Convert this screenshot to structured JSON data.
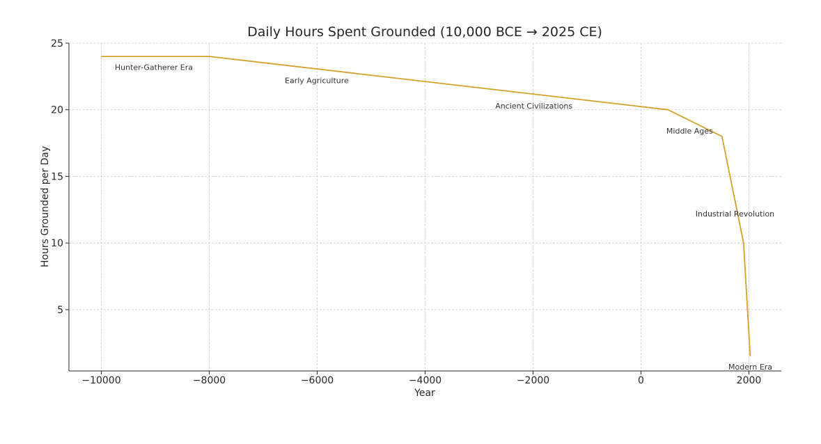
{
  "chart_data": {
    "type": "line",
    "title": "Daily Hours Spent Grounded (10,000 BCE → 2025 CE)",
    "xlabel": "Year",
    "ylabel": "Hours Grounded per Day",
    "xlim": [
      -10600,
      2600
    ],
    "ylim": [
      0.4,
      25
    ],
    "xticks": [
      -10000,
      -8000,
      -6000,
      -4000,
      -2000,
      0,
      2000
    ],
    "xtick_labels": [
      "−10000",
      "−8000",
      "−6000",
      "−4000",
      "−2000",
      "0",
      "2000"
    ],
    "yticks": [
      5,
      10,
      15,
      20,
      25
    ],
    "ytick_labels": [
      "5",
      "10",
      "15",
      "20",
      "25"
    ],
    "grid": true,
    "series": [
      {
        "color": "#d4a12a",
        "x": [
          -10000,
          -8000,
          500,
          1500,
          1900,
          2025
        ],
        "y": [
          24,
          24,
          20,
          18,
          10,
          1.5
        ]
      }
    ],
    "annotations": [
      {
        "text": "Hunter-Gatherer Era",
        "x": -9750,
        "y": 23.0
      },
      {
        "text": "Early Agriculture",
        "x": -6600,
        "y": 22.0
      },
      {
        "text": "Ancient Civilizations",
        "x": -2700,
        "y": 20.1
      },
      {
        "text": "Middle Ages",
        "x": 470,
        "y": 18.2
      },
      {
        "text": "Industrial Revolution",
        "x": 1010,
        "y": 12.0
      },
      {
        "text": "Modern Era",
        "x": 1620,
        "y": 0.5
      }
    ]
  }
}
